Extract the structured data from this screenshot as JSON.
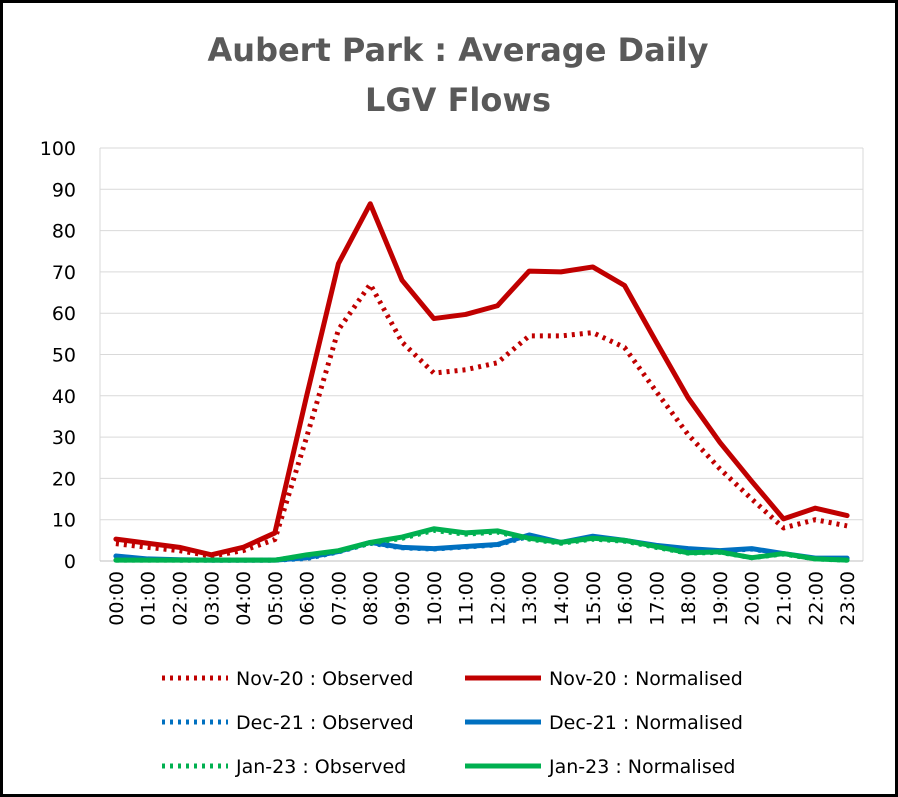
{
  "chart_data": {
    "type": "line",
    "title": "Aubert Park : Average Daily LGV Flows",
    "categories": [
      "00:00",
      "01:00",
      "02:00",
      "03:00",
      "04:00",
      "05:00",
      "06:00",
      "07:00",
      "08:00",
      "09:00",
      "10:00",
      "11:00",
      "12:00",
      "13:00",
      "14:00",
      "15:00",
      "16:00",
      "17:00",
      "18:00",
      "19:00",
      "20:00",
      "21:00",
      "22:00",
      "23:00"
    ],
    "ylim": [
      0,
      100
    ],
    "yticks": [
      0,
      10,
      20,
      30,
      40,
      50,
      60,
      70,
      80,
      90,
      100
    ],
    "grid": true,
    "legend": "bottom",
    "series": [
      {
        "name": "Nov-20 : Observed",
        "color": "#c00000",
        "style": "dotted",
        "values": [
          4.2,
          3.3,
          2.5,
          1.2,
          2.5,
          5.2,
          30,
          56,
          67,
          53,
          45.5,
          46.3,
          48,
          54.5,
          54.5,
          55.3,
          51.7,
          41,
          30.6,
          22.3,
          15,
          8,
          10,
          8.5
        ]
      },
      {
        "name": "Nov-20 : Normalised",
        "color": "#c00000",
        "style": "solid",
        "values": [
          5.3,
          4.3,
          3.3,
          1.5,
          3.3,
          6.8,
          40,
          72,
          86.5,
          68,
          58.7,
          59.7,
          61.8,
          70.2,
          70,
          71.2,
          66.7,
          53,
          39.5,
          28.7,
          19.3,
          10.2,
          12.8,
          11
        ]
      },
      {
        "name": "Dec-21 : Observed",
        "color": "#0070c0",
        "style": "dotted",
        "values": [
          1,
          0.4,
          0.2,
          0.2,
          0.2,
          0.2,
          0.6,
          2.2,
          4.3,
          3.2,
          2.9,
          3.4,
          3.9,
          6,
          4.4,
          5.8,
          4.9,
          3.6,
          2.9,
          2.4,
          2.9,
          1.7,
          0.6,
          0.6
        ]
      },
      {
        "name": "Dec-21 : Normalised",
        "color": "#0070c0",
        "style": "solid",
        "values": [
          1.2,
          0.5,
          0.3,
          0.2,
          0.2,
          0.2,
          0.8,
          2.3,
          4.5,
          3.3,
          3,
          3.5,
          4,
          6.3,
          4.5,
          6,
          5,
          3.8,
          3,
          2.5,
          3,
          1.8,
          0.7,
          0.7
        ]
      },
      {
        "name": "Jan-23 : Observed",
        "color": "#00b050",
        "style": "dotted",
        "values": [
          0.2,
          0.2,
          0.2,
          0.2,
          0.2,
          0.2,
          1.4,
          2.4,
          4.3,
          5.5,
          7.4,
          6.5,
          7,
          5.3,
          4.3,
          5.3,
          4.8,
          3.3,
          1.9,
          2.1,
          0.8,
          1.7,
          0.5,
          0.2
        ]
      },
      {
        "name": "Jan-23 : Normalised",
        "color": "#00b050",
        "style": "solid",
        "values": [
          0.2,
          0.2,
          0.2,
          0.2,
          0.2,
          0.2,
          1.5,
          2.5,
          4.5,
          5.8,
          7.8,
          6.8,
          7.3,
          5.5,
          4.5,
          5.5,
          5,
          3.5,
          2,
          2.2,
          0.8,
          1.8,
          0.5,
          0.2
        ]
      }
    ]
  }
}
